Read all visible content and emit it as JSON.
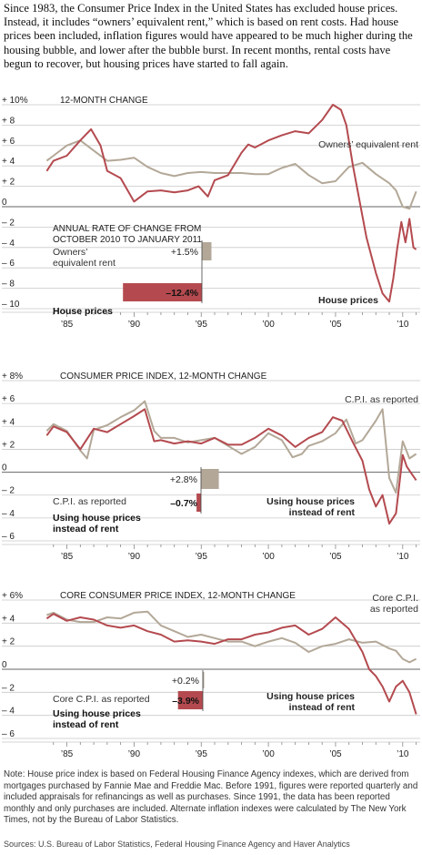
{
  "intro": "Since 1983, the Consumer Price Index in the United States has excluded house prices. Instead, it includes “owners’ equivalent rent,” which is based on rent costs. Had house prices been included, inflation figures would have appeared to be much higher during the housing bubble, and lower after the bubble burst. In recent months, rental costs have begun to recover, but housing prices have started to fall again.",
  "colors": {
    "house": "#b44a4f",
    "rent": "#b3a898",
    "grid": "#c9c9c9",
    "zero": "#666666"
  },
  "x_ticks": [
    "’85",
    "’90",
    "’95",
    "’00",
    "’05",
    "’10"
  ],
  "note": "Note: House price index is based on Federal Housing Finance Agency indexes, which are derived from mortgages purchased by Fannie Mae and Freddie Mac. Before 1991, figures were reported quarterly and included appraisals for refinancings as well as purchases.  Since 1991, the data has been reported monthly and only purchases are included. Alternate inflation indexes were calculated by The New York Times, not by the Bureau of Labor Statistics.",
  "sources": "Sources: U.S. Bureau of Labor Statistics, Federal Housing Finance Agency and Haver Analytics",
  "chart_data": [
    {
      "type": "line",
      "title": "12-MONTH CHANGE",
      "ylim": [
        -10,
        10
      ],
      "y_ticks": [
        "+ 10%",
        "+ 8",
        "+ 6",
        "+ 4",
        "+ 2",
        "0",
        "– 2",
        "– 4",
        "– 6",
        "– 8",
        "– 10"
      ],
      "grid": true,
      "series": [
        {
          "name": "Owners’ equivalent rent",
          "color": "#b3a898",
          "x": [
            1983.5,
            1984,
            1985,
            1986,
            1987,
            1988,
            1989,
            1990,
            1991,
            1992,
            1993,
            1994,
            1995,
            1996,
            1997,
            1998,
            1999,
            2000,
            2001,
            2002,
            2003,
            2004,
            2005,
            2006,
            2007,
            2008,
            2009,
            2009.5,
            2010,
            2010.5,
            2011
          ],
          "y": [
            4.5,
            5.0,
            6.0,
            6.5,
            5.5,
            4.5,
            4.6,
            4.8,
            3.9,
            3.3,
            3.0,
            3.3,
            3.4,
            3.3,
            3.3,
            3.3,
            3.2,
            3.2,
            3.8,
            4.2,
            3.1,
            2.3,
            2.5,
            3.9,
            4.3,
            3.2,
            2.3,
            1.6,
            0.0,
            -0.2,
            1.5
          ]
        },
        {
          "name": "House prices",
          "color": "#b44a4f",
          "x": [
            1983.5,
            1984,
            1985,
            1986,
            1986.8,
            1987.5,
            1988,
            1989,
            1990,
            1990.5,
            1991,
            1992,
            1993,
            1994,
            1994.8,
            1995.5,
            1996,
            1997,
            1998,
            1998.5,
            1999,
            2000,
            2001,
            2002,
            2003,
            2004,
            2004.8,
            2005.4,
            2005.8,
            2006.3,
            2006.8,
            2007.3,
            2008,
            2008.5,
            2009,
            2009.3,
            2009.6,
            2009.9,
            2010.2,
            2010.5,
            2010.8,
            2011
          ],
          "y": [
            3.5,
            4.5,
            5.0,
            6.5,
            7.6,
            6.0,
            3.5,
            2.8,
            0.5,
            1.0,
            1.5,
            1.6,
            1.4,
            1.6,
            2.0,
            1.0,
            2.6,
            3.1,
            5.3,
            6.1,
            5.8,
            6.5,
            7.0,
            7.4,
            7.2,
            8.5,
            10.0,
            9.5,
            8.0,
            4.0,
            0.5,
            -3.0,
            -6.5,
            -8.5,
            -9.3,
            -7.0,
            -4.0,
            -1.5,
            -3.5,
            -1.2,
            -4.0,
            -4.2
          ]
        }
      ],
      "annotations": [
        "Owners’ equivalent rent",
        "House prices"
      ],
      "inset": {
        "title": "ANNUAL RATE OF CHANGE FROM\nOCTOBER 2010 TO JANUARY 2011",
        "items": [
          {
            "label": "Owners’\nequivalent rent",
            "value": 1.5,
            "value_label": "+1.5%",
            "color": "#b3a898"
          },
          {
            "label": "House prices",
            "value": -12.4,
            "value_label": "–12.4%",
            "color": "#b44a4f"
          }
        ]
      }
    },
    {
      "type": "line",
      "title": "CONSUMER PRICE INDEX, 12-MONTH CHANGE",
      "ylim": [
        -6,
        8
      ],
      "y_ticks": [
        "+ 8%",
        "+ 6",
        "+ 4",
        "+ 2",
        "0",
        "– 2",
        "– 4",
        "– 6"
      ],
      "grid": true,
      "series": [
        {
          "name": "C.P.I. as reported",
          "color": "#b3a898",
          "x": [
            1983.5,
            1984,
            1985,
            1986,
            1986.5,
            1987,
            1988,
            1989,
            1990,
            1990.8,
            1991.5,
            1992,
            1993,
            1994,
            1995,
            1996,
            1997,
            1998,
            1999,
            2000,
            2001,
            2001.8,
            2002.5,
            2003,
            2004,
            2005,
            2005.8,
            2006.5,
            2007,
            2008,
            2008.5,
            2009,
            2009.5,
            2010,
            2010.5,
            2011
          ],
          "y": [
            3.6,
            4.2,
            3.6,
            1.9,
            1.2,
            3.7,
            4.1,
            4.8,
            5.4,
            6.2,
            3.6,
            3.0,
            3.0,
            2.6,
            2.8,
            3.0,
            2.3,
            1.6,
            2.2,
            3.4,
            2.8,
            1.3,
            1.6,
            2.3,
            2.7,
            3.4,
            4.6,
            2.5,
            2.8,
            4.5,
            5.5,
            -0.5,
            -1.8,
            2.7,
            1.2,
            1.6
          ]
        },
        {
          "name": "Using house prices instead of rent",
          "color": "#b44a4f",
          "x": [
            1983.5,
            1984,
            1985,
            1986,
            1987,
            1988,
            1989,
            1990,
            1990.8,
            1991.5,
            1992,
            1993,
            1994,
            1995,
            1996,
            1997,
            1998,
            1999,
            2000,
            2001,
            2002,
            2003,
            2004,
            2004.8,
            2005.5,
            2006.3,
            2007,
            2007.5,
            2008,
            2008.5,
            2009,
            2009.5,
            2010,
            2010.3,
            2010.7,
            2011
          ],
          "y": [
            3.2,
            4.0,
            3.5,
            2.0,
            3.8,
            3.5,
            4.2,
            4.9,
            5.5,
            2.7,
            2.8,
            2.5,
            2.7,
            2.5,
            3.0,
            2.4,
            2.4,
            3.0,
            3.8,
            3.2,
            2.2,
            3.0,
            3.5,
            4.8,
            4.5,
            2.6,
            1.0,
            -1.5,
            -3.0,
            -2.0,
            -4.5,
            -3.6,
            1.5,
            0.5,
            -0.2,
            -0.7
          ]
        }
      ],
      "annotations": [
        "C.P.I. as reported",
        "Using house prices\ninstead of rent"
      ],
      "inset": {
        "items": [
          {
            "label": "C.P.I. as reported",
            "value": 2.8,
            "value_label": "+2.8%",
            "color": "#b3a898"
          },
          {
            "label": "Using house prices\ninstead of rent",
            "value": -0.7,
            "value_label": "–0.7%",
            "color": "#b44a4f"
          }
        ]
      }
    },
    {
      "type": "line",
      "title": "CORE CONSUMER PRICE INDEX, 12-MONTH CHANGE",
      "ylim": [
        -6,
        6
      ],
      "y_ticks": [
        "+ 6%",
        "+ 4",
        "+ 2",
        "0",
        "– 2",
        "– 4",
        "– 6"
      ],
      "grid": true,
      "series": [
        {
          "name": "Core C.P.I. as reported",
          "color": "#b3a898",
          "x": [
            1983.5,
            1984,
            1985,
            1986,
            1987,
            1988,
            1989,
            1990,
            1991,
            1992,
            1993,
            1994,
            1995,
            1996,
            1997,
            1998,
            1999,
            2000,
            2001,
            2002,
            2003,
            2004,
            2005,
            2006,
            2007,
            2008,
            2009,
            2009.5,
            2010,
            2010.5,
            2011
          ],
          "y": [
            4.7,
            4.9,
            4.3,
            4.1,
            4.1,
            4.5,
            4.4,
            4.9,
            5.0,
            3.8,
            3.3,
            2.8,
            3.0,
            2.7,
            2.4,
            2.4,
            2.0,
            2.4,
            2.7,
            2.3,
            1.5,
            2.0,
            2.2,
            2.6,
            2.3,
            2.4,
            1.8,
            1.6,
            0.9,
            0.6,
            0.9
          ]
        },
        {
          "name": "Using house prices instead of rent",
          "color": "#b44a4f",
          "x": [
            1983.5,
            1984,
            1985,
            1986,
            1987,
            1988,
            1989,
            1990,
            1991,
            1992,
            1993,
            1994,
            1995,
            1996,
            1997,
            1998,
            1999,
            2000,
            2001,
            2002,
            2003,
            2004,
            2005,
            2006,
            2007,
            2007.5,
            2008,
            2008.5,
            2009,
            2009.5,
            2010,
            2010.5,
            2011
          ],
          "y": [
            4.4,
            4.8,
            4.2,
            4.5,
            4.3,
            3.8,
            3.6,
            3.8,
            3.3,
            3.0,
            2.4,
            2.5,
            2.4,
            2.2,
            2.6,
            2.6,
            3.0,
            3.2,
            3.6,
            3.8,
            3.0,
            3.5,
            4.5,
            3.5,
            1.5,
            0.0,
            -0.6,
            -1.5,
            -2.8,
            -1.5,
            -1.0,
            -2.0,
            -3.9
          ]
        }
      ],
      "annotations": [
        "Core C.P.I.\nas reported",
        "Using house prices\ninstead of rent"
      ],
      "inset": {
        "items": [
          {
            "label": "Core C.P.I. as reported",
            "value": 0.2,
            "value_label": "+0.2%",
            "color": "#b3a898"
          },
          {
            "label": "Using house prices\ninstead of rent",
            "value": -3.9,
            "value_label": "–3.9%",
            "color": "#b44a4f"
          }
        ]
      }
    }
  ]
}
